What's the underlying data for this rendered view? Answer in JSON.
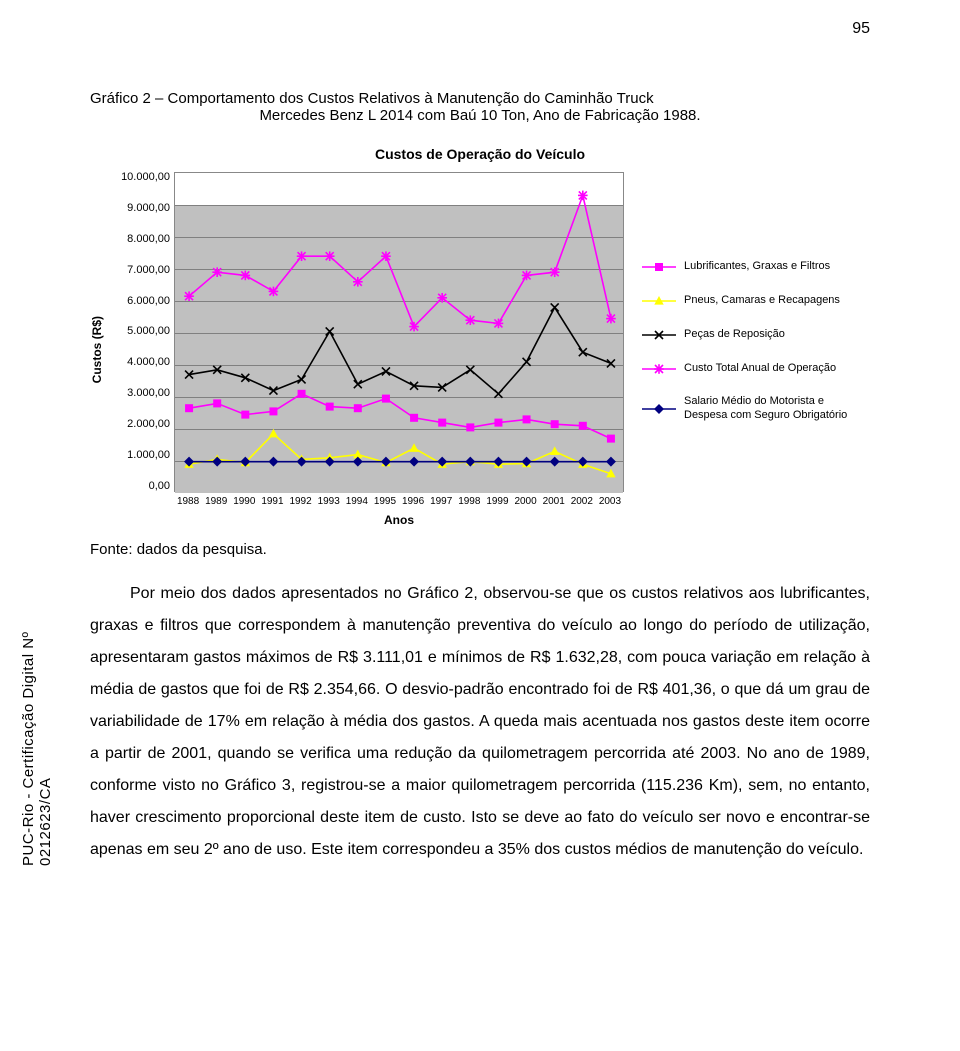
{
  "page_number": "95",
  "title_line1": "Gráfico 2 – Comportamento dos Custos Relativos à Manutenção do Caminhão Truck",
  "title_line2": "Mercedes Benz L 2014 com Baú 10 Ton, Ano de Fabricação 1988.",
  "chart": {
    "title": "Custos de Operação do Veículo",
    "ylabel": "Custos (R$)",
    "xlabel": "Anos",
    "background_color": "#ffffff",
    "plot_area_color": "#c0c0c0",
    "grid_color": "#808080",
    "border_color": "#808080",
    "ylim": [
      0,
      10000
    ],
    "yticks": [
      "10.000,00",
      "9.000,00",
      "8.000,00",
      "7.000,00",
      "6.000,00",
      "5.000,00",
      "4.000,00",
      "3.000,00",
      "2.000,00",
      "1.000,00",
      "0,00"
    ],
    "ytick_values": [
      10000,
      9000,
      8000,
      7000,
      6000,
      5000,
      4000,
      3000,
      2000,
      1000,
      0
    ],
    "categories": [
      "1988",
      "1989",
      "1990",
      "1991",
      "1992",
      "1993",
      "1994",
      "1995",
      "1996",
      "1997",
      "1998",
      "1999",
      "2000",
      "2001",
      "2002",
      "2003"
    ],
    "label_fontsize": 12,
    "tick_fontsize": 11,
    "title_fontsize": 14,
    "line_width": 1.6,
    "marker_size": 8,
    "series": [
      {
        "name": "Lubrificantes, Graxas e Filtros",
        "color": "#ff00ff",
        "marker": "square",
        "values": [
          2650,
          2800,
          2450,
          2550,
          3100,
          2700,
          2650,
          2950,
          2350,
          2200,
          2050,
          2200,
          2300,
          2150,
          2100,
          1700
        ]
      },
      {
        "name": "Pneus, Camaras e Recapagens",
        "color": "#ffff00",
        "marker": "triangle",
        "values": [
          900,
          1050,
          950,
          1850,
          1050,
          1100,
          1200,
          950,
          1400,
          900,
          980,
          900,
          920,
          1300,
          900,
          600
        ]
      },
      {
        "name": "Peças de Reposição",
        "color": "#000000",
        "marker": "x",
        "values": [
          3700,
          3850,
          3600,
          3200,
          3550,
          5050,
          3400,
          3800,
          3350,
          3300,
          3850,
          3100,
          4100,
          5800,
          4400,
          4050
        ]
      },
      {
        "name": "Custo Total Anual de Operação",
        "color": "#ff00ff",
        "marker": "asterisk",
        "values": [
          6150,
          6900,
          6800,
          6300,
          7400,
          7400,
          6600,
          7400,
          5200,
          6100,
          5400,
          5300,
          6800,
          6900,
          9300,
          5450
        ]
      },
      {
        "name": "Salario Médio do Motorista e Despesa com Seguro Obrigatório",
        "color": "#000080",
        "marker": "diamond",
        "values": [
          980,
          980,
          980,
          980,
          980,
          980,
          980,
          980,
          980,
          980,
          980,
          980,
          980,
          980,
          980,
          980
        ]
      }
    ]
  },
  "source_label": "Fonte: dados da pesquisa.",
  "body_text": "Por meio dos dados apresentados no Gráfico 2, observou-se que os custos relativos aos lubrificantes, graxas e filtros que correspondem à manutenção preventiva do veículo ao longo do período de utilização, apresentaram gastos máximos de R$ 3.111,01 e mínimos de R$ 1.632,28, com pouca variação em relação à média de gastos que foi de R$ 2.354,66. O desvio-padrão encontrado foi de R$ 401,36, o que dá um grau de variabilidade de 17%  em relação à média dos gastos. A queda mais acentuada nos gastos deste item ocorre a partir de 2001, quando se verifica uma redução da quilometragem percorrida até 2003. No ano de 1989, conforme visto no Gráfico 3, registrou-se a maior quilometragem percorrida (115.236 Km), sem, no entanto, haver crescimento proporcional deste item de custo. Isto se deve ao fato do veículo ser novo e encontrar-se apenas em seu 2º ano de uso. Este item correspondeu a 35% dos custos médios de manutenção do veículo.",
  "vert_text": "PUC-Rio - Certificação Digital Nº 0212623/CA"
}
